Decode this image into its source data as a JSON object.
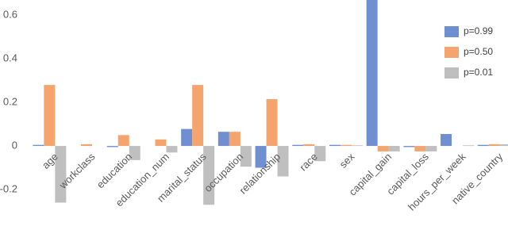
{
  "chart_data": {
    "type": "bar",
    "categories": [
      "age",
      "workclass",
      "education",
      "education_num",
      "marital_status",
      "occupation",
      "relationship",
      "race",
      "sex",
      "capital_gain",
      "capital_loss",
      "hours_per_week",
      "native_country"
    ],
    "series": [
      {
        "name": "p=0.99",
        "color": "#6f8fd0",
        "values": [
          0.005,
          0,
          -0.005,
          0,
          0.078,
          0.065,
          -0.1,
          0.005,
          0.005,
          0.67,
          -0.005,
          0.055,
          0.005
        ]
      },
      {
        "name": "p=0.50",
        "color": "#f4a46c",
        "values": [
          0.28,
          0.008,
          0.05,
          0.03,
          0.28,
          0.065,
          0.215,
          0.008,
          0.005,
          -0.025,
          -0.025,
          0,
          0.008
        ]
      },
      {
        "name": "p=0.01",
        "color": "#bfbfbf",
        "values": [
          -0.26,
          0,
          -0.065,
          -0.03,
          -0.27,
          -0.095,
          -0.14,
          -0.07,
          0.003,
          -0.025,
          -0.025,
          0.003,
          0.008
        ]
      }
    ],
    "ylim": [
      -0.25,
      0.67
    ],
    "yticks": [
      -0.2,
      0,
      0.2,
      0.4,
      0.6
    ],
    "grid": false,
    "legend": "right"
  }
}
